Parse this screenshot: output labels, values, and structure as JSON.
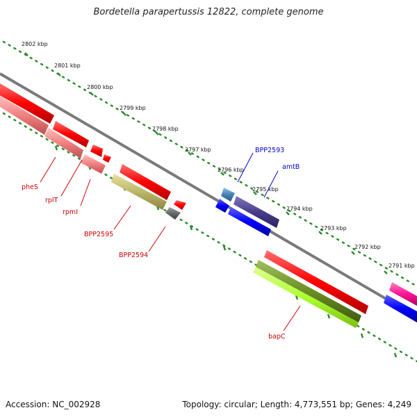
{
  "title": "Bordetella parapertussis 12822, complete genome",
  "footer": {
    "accession": "Accession: NC_002928",
    "topology": "Topology: circular; Length: 4,773,551 bp; Genes: 4,249"
  },
  "scale_ticks": [
    "2802 kbp",
    "2801 kbp",
    "2800 kbp",
    "2799 kbp",
    "2798 kbp",
    "2797 kbp",
    "2796 kbp",
    "2795 kbp",
    "2794 kbp",
    "2793 kbp",
    "2792 kbp",
    "2791 kbp"
  ],
  "gene_labels": {
    "pheS": "pheS",
    "rplT": "rplT",
    "rpmI": "rpmI",
    "BPP2595": "BPP2595",
    "BPP2594": "BPP2594",
    "BPP2593": "BPP2593",
    "amtB": "amtB",
    "bapC": "bapC"
  },
  "colors": {
    "backbone": "#7a7a7a",
    "gene_red": "#ff1a1a",
    "gene_salmon": "#f08080",
    "gene_khaki": "#bdb76b",
    "gene_gray": "#696969",
    "gene_steelblue": "#4682b4",
    "gene_darkslateblue": "#483d8b",
    "gene_blue": "#0000ff",
    "gene_olive": "#6b8e23",
    "gene_greenyellow": "#adff2f",
    "gene_magenta": "#ff1493",
    "dot_green": "#2e8b2e",
    "label_red": "#cc0000",
    "label_blue": "#0000cc"
  }
}
